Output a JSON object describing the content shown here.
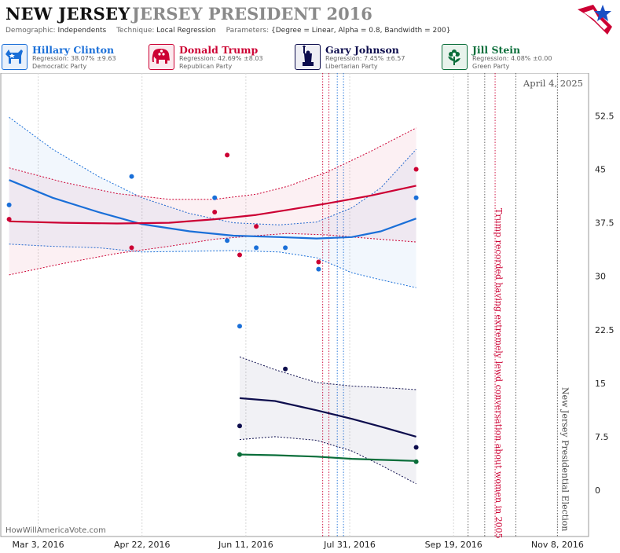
{
  "header": {
    "state": "NEW JERSEY",
    "race": "JERSEY PRESIDENT 2016",
    "demographic_label": "Demographic:",
    "demographic": "Independents",
    "technique_label": "Technique:",
    "technique": "Local Regression",
    "parameters_label": "Parameters:",
    "parameters": "{Degree = Linear, Alpha = 0.8, Bandwidth = 200}"
  },
  "candidates": [
    {
      "name": "Hillary Clinton",
      "regression": "Regression: 38.07% ±9.63",
      "party": "Democratic Party",
      "color": "#1a6fd8",
      "bg": "#e9f1fb",
      "icon": "donkey-icon"
    },
    {
      "name": "Donald Trump",
      "regression": "Regression: 42.69% ±8.03",
      "party": "Republican Party",
      "color": "#cc0033",
      "bg": "#fbe9ee",
      "icon": "elephant-icon"
    },
    {
      "name": "Gary Johnson",
      "regression": "Regression: 7.45% ±6.57",
      "party": "Libertarian Party",
      "color": "#0d0d4d",
      "bg": "#eeeef4",
      "icon": "statue-of-liberty-icon"
    },
    {
      "name": "Jill Stein",
      "regression": "Regression: 4.08% ±0.00",
      "party": "Green Party",
      "color": "#0a6e3a",
      "bg": "#e8f3ec",
      "icon": "flower-icon"
    }
  ],
  "chart_data": {
    "type": "line",
    "date_label": "April 4, 2025",
    "watermark": "HowWillAmericaVote.com",
    "x_tick_labels": [
      "Mar 3, 2016",
      "Apr 22, 2016",
      "Jun 11, 2016",
      "Jul 31, 2016",
      "Sep 19, 2016",
      "Nov 8, 2016"
    ],
    "x_ticks": [
      "2016-03-03",
      "2016-04-22",
      "2016-06-11",
      "2016-07-31",
      "2016-09-19",
      "2016-11-08"
    ],
    "xlim": [
      "2016-02-14",
      "2016-11-23"
    ],
    "y_ticks": [
      0,
      7.5,
      15,
      22.5,
      30,
      37.5,
      45,
      52.5
    ],
    "y_tick_labels": [
      "0",
      "7.5",
      "15",
      "22.5",
      "30",
      "37.5",
      "45",
      "52.5"
    ],
    "ylim": [
      -6.5,
      58.5
    ],
    "annotations": [
      {
        "text": "Trump recorded having extremely lewd conversation about women in 2005",
        "date": "2016-10-07",
        "color": "#cc0033"
      },
      {
        "text": "New Jersey Presidential Election",
        "date": "2016-11-08",
        "color": "#444444"
      }
    ],
    "event_lines": [
      {
        "date": "2016-07-18",
        "color": "#cc0033"
      },
      {
        "date": "2016-07-21",
        "color": "#cc0033"
      },
      {
        "date": "2016-07-25",
        "color": "#1a6fd8"
      },
      {
        "date": "2016-07-28",
        "color": "#1a6fd8"
      },
      {
        "date": "2016-09-26",
        "color": "#555555"
      },
      {
        "date": "2016-10-04",
        "color": "#555555"
      },
      {
        "date": "2016-10-09",
        "color": "#cc0033"
      },
      {
        "date": "2016-10-19",
        "color": "#555555"
      },
      {
        "date": "2016-11-08",
        "color": "#555555"
      }
    ],
    "series": [
      {
        "name": "Hillary Clinton",
        "color": "#1a6fd8",
        "points": [
          [
            "2016-02-18",
            40.0
          ],
          [
            "2016-04-17",
            44.0
          ],
          [
            "2016-05-27",
            41.0
          ],
          [
            "2016-06-02",
            35.0
          ],
          [
            "2016-06-08",
            23.0
          ],
          [
            "2016-06-16",
            34.0
          ],
          [
            "2016-06-30",
            34.0
          ],
          [
            "2016-07-16",
            31.0
          ],
          [
            "2016-09-01",
            41.0
          ]
        ],
        "trend": [
          [
            "2016-02-18",
            43.5
          ],
          [
            "2016-03-10",
            41.0
          ],
          [
            "2016-04-01",
            39.0
          ],
          [
            "2016-04-22",
            37.3
          ],
          [
            "2016-05-15",
            36.3
          ],
          [
            "2016-06-05",
            35.7
          ],
          [
            "2016-06-27",
            35.5
          ],
          [
            "2016-07-15",
            35.3
          ],
          [
            "2016-08-01",
            35.5
          ],
          [
            "2016-08-15",
            36.3
          ],
          [
            "2016-09-01",
            38.1
          ]
        ],
        "upper": [
          [
            "2016-02-18",
            52.3
          ],
          [
            "2016-03-10",
            47.8
          ],
          [
            "2016-04-01",
            44.0
          ],
          [
            "2016-04-22",
            41.0
          ],
          [
            "2016-05-15",
            38.8
          ],
          [
            "2016-06-05",
            37.5
          ],
          [
            "2016-06-27",
            37.2
          ],
          [
            "2016-07-15",
            37.6
          ],
          [
            "2016-08-01",
            39.6
          ],
          [
            "2016-08-15",
            42.4
          ],
          [
            "2016-09-01",
            47.8
          ]
        ],
        "lower": [
          [
            "2016-02-18",
            34.5
          ],
          [
            "2016-03-10",
            34.2
          ],
          [
            "2016-04-01",
            34.0
          ],
          [
            "2016-04-22",
            33.4
          ],
          [
            "2016-05-15",
            33.5
          ],
          [
            "2016-06-05",
            33.6
          ],
          [
            "2016-06-27",
            33.4
          ],
          [
            "2016-07-15",
            32.6
          ],
          [
            "2016-08-01",
            30.5
          ],
          [
            "2016-08-15",
            29.5
          ],
          [
            "2016-09-01",
            28.4
          ]
        ]
      },
      {
        "name": "Donald Trump",
        "color": "#cc0033",
        "points": [
          [
            "2016-02-18",
            38.0
          ],
          [
            "2016-04-17",
            34.0
          ],
          [
            "2016-05-27",
            39.0
          ],
          [
            "2016-06-02",
            47.0
          ],
          [
            "2016-06-08",
            33.0
          ],
          [
            "2016-06-16",
            37.0
          ],
          [
            "2016-07-16",
            32.0
          ],
          [
            "2016-09-01",
            45.0
          ]
        ],
        "trend": [
          [
            "2016-02-18",
            37.7
          ],
          [
            "2016-03-15",
            37.5
          ],
          [
            "2016-04-10",
            37.4
          ],
          [
            "2016-05-05",
            37.5
          ],
          [
            "2016-05-27",
            38.0
          ],
          [
            "2016-06-16",
            38.6
          ],
          [
            "2016-07-01",
            39.3
          ],
          [
            "2016-07-20",
            40.2
          ],
          [
            "2016-08-10",
            41.3
          ],
          [
            "2016-09-01",
            42.7
          ]
        ],
        "upper": [
          [
            "2016-02-18",
            45.2
          ],
          [
            "2016-03-15",
            43.2
          ],
          [
            "2016-04-10",
            41.6
          ],
          [
            "2016-05-05",
            40.8
          ],
          [
            "2016-05-27",
            40.8
          ],
          [
            "2016-06-16",
            41.5
          ],
          [
            "2016-07-01",
            42.6
          ],
          [
            "2016-07-20",
            44.6
          ],
          [
            "2016-08-10",
            47.5
          ],
          [
            "2016-09-01",
            50.8
          ]
        ],
        "lower": [
          [
            "2016-02-18",
            30.2
          ],
          [
            "2016-03-15",
            31.8
          ],
          [
            "2016-04-10",
            33.2
          ],
          [
            "2016-05-05",
            34.2
          ],
          [
            "2016-05-27",
            35.2
          ],
          [
            "2016-06-16",
            35.7
          ],
          [
            "2016-07-01",
            36.0
          ],
          [
            "2016-07-20",
            35.8
          ],
          [
            "2016-08-10",
            35.3
          ],
          [
            "2016-09-01",
            34.8
          ]
        ]
      },
      {
        "name": "Gary Johnson",
        "color": "#0d0d4d",
        "points": [
          [
            "2016-06-08",
            9.0
          ],
          [
            "2016-06-30",
            17.0
          ],
          [
            "2016-09-01",
            6.0
          ]
        ],
        "trend": [
          [
            "2016-06-08",
            12.9
          ],
          [
            "2016-06-25",
            12.5
          ],
          [
            "2016-07-15",
            11.2
          ],
          [
            "2016-08-01",
            10.0
          ],
          [
            "2016-08-15",
            8.9
          ],
          [
            "2016-09-01",
            7.5
          ]
        ],
        "upper": [
          [
            "2016-06-08",
            18.7
          ],
          [
            "2016-06-25",
            16.9
          ],
          [
            "2016-07-15",
            15.1
          ],
          [
            "2016-08-01",
            14.6
          ],
          [
            "2016-08-15",
            14.4
          ],
          [
            "2016-09-01",
            14.1
          ]
        ],
        "lower": [
          [
            "2016-06-08",
            7.1
          ],
          [
            "2016-06-25",
            7.5
          ],
          [
            "2016-07-15",
            7.0
          ],
          [
            "2016-08-01",
            5.5
          ],
          [
            "2016-08-15",
            3.5
          ],
          [
            "2016-09-01",
            0.9
          ]
        ]
      },
      {
        "name": "Jill Stein",
        "color": "#0a6e3a",
        "points": [
          [
            "2016-06-08",
            5.0
          ],
          [
            "2016-09-01",
            4.0
          ]
        ],
        "trend": [
          [
            "2016-06-08",
            5.0
          ],
          [
            "2016-06-25",
            4.9
          ],
          [
            "2016-07-15",
            4.7
          ],
          [
            "2016-08-01",
            4.4
          ],
          [
            "2016-08-15",
            4.25
          ],
          [
            "2016-09-01",
            4.1
          ]
        ],
        "upper": [],
        "lower": []
      }
    ]
  }
}
